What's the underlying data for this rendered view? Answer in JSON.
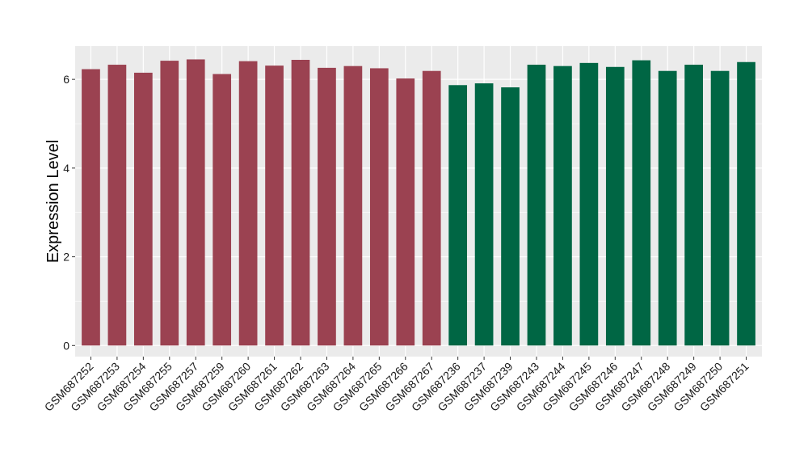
{
  "chart_data": {
    "type": "bar",
    "title": "",
    "xlabel": "",
    "ylabel": "Expression Level",
    "ylim": [
      -0.25,
      6.75
    ],
    "yticks": [
      0,
      2,
      4,
      6
    ],
    "grid": true,
    "legend": "none",
    "panel_color": "#ebebeb",
    "grid_color": "#ffffff",
    "categories": [
      "GSM687252",
      "GSM687253",
      "GSM687254",
      "GSM687255",
      "GSM687257",
      "GSM687259",
      "GSM687260",
      "GSM687261",
      "GSM687262",
      "GSM687263",
      "GSM687264",
      "GSM687265",
      "GSM687266",
      "GSM687267",
      "GSM687236",
      "GSM687237",
      "GSM687239",
      "GSM687243",
      "GSM687244",
      "GSM687245",
      "GSM687246",
      "GSM687247",
      "GSM687248",
      "GSM687249",
      "GSM687250",
      "GSM687251"
    ],
    "values": [
      6.23,
      6.33,
      6.15,
      6.42,
      6.45,
      6.12,
      6.41,
      6.31,
      6.44,
      6.26,
      6.3,
      6.25,
      6.02,
      6.19,
      5.87,
      5.91,
      5.82,
      6.33,
      6.3,
      6.37,
      6.28,
      6.43,
      6.19,
      6.33,
      6.19,
      6.39
    ],
    "bar_colors": [
      "#9b4251",
      "#9b4251",
      "#9b4251",
      "#9b4251",
      "#9b4251",
      "#9b4251",
      "#9b4251",
      "#9b4251",
      "#9b4251",
      "#9b4251",
      "#9b4251",
      "#9b4251",
      "#9b4251",
      "#9b4251",
      "#006644",
      "#006644",
      "#006644",
      "#006644",
      "#006644",
      "#006644",
      "#006644",
      "#006644",
      "#006644",
      "#006644",
      "#006644",
      "#006644"
    ]
  }
}
